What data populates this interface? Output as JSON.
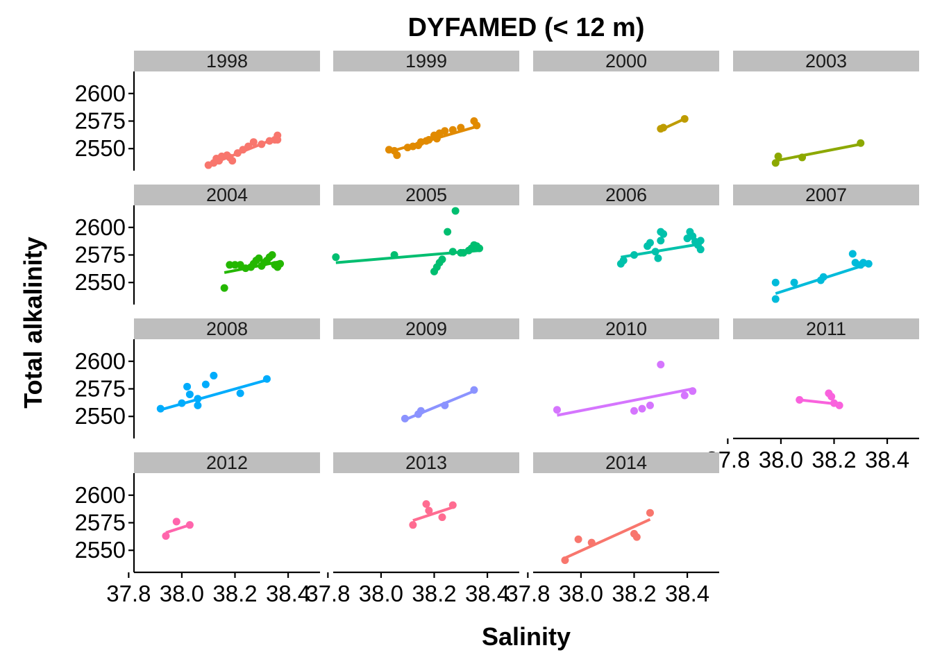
{
  "chart_data": {
    "type": "scatter",
    "title": "DYFAMED (< 12 m)",
    "xlabel": "Salinity",
    "ylabel": "Total alkalinity",
    "xlim": [
      37.82,
      38.52
    ],
    "ylim": [
      2530,
      2620
    ],
    "x_tick_labels": [
      "37.8",
      "38.0",
      "38.2",
      "38.4"
    ],
    "x_ticks": [
      37.8,
      38.0,
      38.2,
      38.4
    ],
    "y_tick_labels": [
      "2550",
      "2575",
      "2600"
    ],
    "y_ticks": [
      2550,
      2575,
      2600
    ],
    "fit_line": true,
    "panels": [
      {
        "name": "1998",
        "color": "#F8766D",
        "points": [
          [
            38.1,
            2535
          ],
          [
            38.12,
            2537
          ],
          [
            38.13,
            2541
          ],
          [
            38.14,
            2539
          ],
          [
            38.15,
            2543
          ],
          [
            38.17,
            2544
          ],
          [
            38.18,
            2542
          ],
          [
            38.19,
            2539
          ],
          [
            38.21,
            2546
          ],
          [
            38.23,
            2549
          ],
          [
            38.25,
            2552
          ],
          [
            38.27,
            2556
          ],
          [
            38.3,
            2554
          ],
          [
            38.33,
            2557
          ],
          [
            38.35,
            2558
          ],
          [
            38.36,
            2562
          ],
          [
            38.36,
            2558
          ]
        ],
        "fit": [
          [
            38.1,
            2535
          ],
          [
            38.36,
            2560
          ]
        ]
      },
      {
        "name": "1999",
        "color": "#E18A00",
        "points": [
          [
            38.03,
            2549
          ],
          [
            38.05,
            2548
          ],
          [
            38.06,
            2544
          ],
          [
            38.1,
            2551
          ],
          [
            38.12,
            2552
          ],
          [
            38.14,
            2553
          ],
          [
            38.15,
            2556
          ],
          [
            38.17,
            2557
          ],
          [
            38.18,
            2558
          ],
          [
            38.2,
            2562
          ],
          [
            38.22,
            2564
          ],
          [
            38.24,
            2566
          ],
          [
            38.21,
            2559
          ],
          [
            38.27,
            2567
          ],
          [
            38.3,
            2569
          ],
          [
            38.35,
            2575
          ],
          [
            38.36,
            2571
          ]
        ],
        "fit": [
          [
            38.03,
            2547
          ],
          [
            38.36,
            2570
          ]
        ]
      },
      {
        "name": "2000",
        "color": "#BE9C00",
        "points": [
          [
            38.3,
            2568
          ],
          [
            38.31,
            2569
          ],
          [
            38.39,
            2577
          ]
        ],
        "fit": [
          [
            38.3,
            2567
          ],
          [
            38.39,
            2577
          ]
        ]
      },
      {
        "name": "2003",
        "color": "#8CA800",
        "points": [
          [
            37.98,
            2537
          ],
          [
            37.99,
            2543
          ],
          [
            38.08,
            2542
          ],
          [
            38.3,
            2555
          ]
        ],
        "fit": [
          [
            37.98,
            2539
          ],
          [
            38.3,
            2554
          ]
        ]
      },
      {
        "name": "2004",
        "color": "#24B700",
        "points": [
          [
            38.16,
            2545
          ],
          [
            38.18,
            2566
          ],
          [
            38.2,
            2566
          ],
          [
            38.22,
            2566
          ],
          [
            38.24,
            2563
          ],
          [
            38.26,
            2564
          ],
          [
            38.27,
            2567
          ],
          [
            38.28,
            2570
          ],
          [
            38.29,
            2572
          ],
          [
            38.3,
            2565
          ],
          [
            38.31,
            2568
          ],
          [
            38.32,
            2570
          ],
          [
            38.33,
            2573
          ],
          [
            38.34,
            2575
          ],
          [
            38.35,
            2566
          ],
          [
            38.36,
            2564
          ],
          [
            38.37,
            2567
          ]
        ],
        "fit": [
          [
            38.16,
            2559
          ],
          [
            38.37,
            2569
          ]
        ]
      },
      {
        "name": "2005",
        "color": "#00BE70",
        "points": [
          [
            37.83,
            2573
          ],
          [
            38.05,
            2575
          ],
          [
            38.2,
            2560
          ],
          [
            38.21,
            2564
          ],
          [
            38.22,
            2568
          ],
          [
            38.23,
            2571
          ],
          [
            38.25,
            2596
          ],
          [
            38.27,
            2578
          ],
          [
            38.3,
            2577
          ],
          [
            38.31,
            2577
          ],
          [
            38.33,
            2579
          ],
          [
            38.34,
            2581
          ],
          [
            38.35,
            2584
          ],
          [
            38.36,
            2583
          ],
          [
            38.37,
            2581
          ],
          [
            38.28,
            2615
          ]
        ],
        "fit": [
          [
            37.83,
            2568
          ],
          [
            38.37,
            2579
          ]
        ]
      },
      {
        "name": "2006",
        "color": "#00C1AB",
        "points": [
          [
            38.15,
            2567
          ],
          [
            38.16,
            2570
          ],
          [
            38.2,
            2575
          ],
          [
            38.25,
            2583
          ],
          [
            38.26,
            2586
          ],
          [
            38.28,
            2578
          ],
          [
            38.29,
            2572
          ],
          [
            38.3,
            2588
          ],
          [
            38.3,
            2596
          ],
          [
            38.31,
            2594
          ],
          [
            38.4,
            2590
          ],
          [
            38.41,
            2596
          ],
          [
            38.42,
            2592
          ],
          [
            38.43,
            2587
          ],
          [
            38.44,
            2584
          ],
          [
            38.45,
            2580
          ],
          [
            38.45,
            2588
          ]
        ],
        "fit": [
          [
            38.15,
            2573
          ],
          [
            38.45,
            2585
          ]
        ]
      },
      {
        "name": "2007",
        "color": "#00BBDA",
        "points": [
          [
            37.98,
            2535
          ],
          [
            37.98,
            2550
          ],
          [
            38.05,
            2550
          ],
          [
            38.15,
            2552
          ],
          [
            38.16,
            2555
          ],
          [
            38.27,
            2576
          ],
          [
            38.28,
            2568
          ],
          [
            38.3,
            2566
          ],
          [
            38.31,
            2568
          ],
          [
            38.33,
            2567
          ]
        ],
        "fit": [
          [
            37.98,
            2540
          ],
          [
            38.33,
            2567
          ]
        ]
      },
      {
        "name": "2008",
        "color": "#00ACFC",
        "points": [
          [
            37.92,
            2557
          ],
          [
            38.0,
            2562
          ],
          [
            38.02,
            2577
          ],
          [
            38.03,
            2570
          ],
          [
            38.06,
            2560
          ],
          [
            38.06,
            2566
          ],
          [
            38.09,
            2579
          ],
          [
            38.12,
            2587
          ],
          [
            38.22,
            2571
          ],
          [
            38.32,
            2584
          ]
        ],
        "fit": [
          [
            37.92,
            2556
          ],
          [
            38.32,
            2583
          ]
        ]
      },
      {
        "name": "2009",
        "color": "#8B93FF",
        "points": [
          [
            38.09,
            2548
          ],
          [
            38.14,
            2552
          ],
          [
            38.15,
            2555
          ],
          [
            38.24,
            2560
          ],
          [
            38.35,
            2574
          ]
        ],
        "fit": [
          [
            38.09,
            2547
          ],
          [
            38.35,
            2573
          ]
        ]
      },
      {
        "name": "2010",
        "color": "#D575FE",
        "points": [
          [
            37.91,
            2556
          ],
          [
            38.2,
            2555
          ],
          [
            38.23,
            2557
          ],
          [
            38.26,
            2560
          ],
          [
            38.3,
            2597
          ],
          [
            38.39,
            2569
          ],
          [
            38.42,
            2573
          ]
        ],
        "fit": [
          [
            37.91,
            2551
          ],
          [
            38.42,
            2575
          ]
        ]
      },
      {
        "name": "2011",
        "color": "#F962DD",
        "points": [
          [
            38.07,
            2565
          ],
          [
            38.18,
            2571
          ],
          [
            38.19,
            2568
          ],
          [
            38.2,
            2562
          ],
          [
            38.22,
            2560
          ]
        ],
        "fit": [
          [
            38.07,
            2565
          ],
          [
            38.22,
            2561
          ]
        ]
      },
      {
        "name": "2012",
        "color": "#FF65AC",
        "points": [
          [
            37.94,
            2563
          ],
          [
            37.98,
            2576
          ],
          [
            38.03,
            2573
          ]
        ],
        "fit": [
          [
            37.94,
            2566
          ],
          [
            38.03,
            2573
          ]
        ]
      },
      {
        "name": "2013",
        "color": "#FF6C91",
        "points": [
          [
            38.12,
            2573
          ],
          [
            38.17,
            2592
          ],
          [
            38.18,
            2586
          ],
          [
            38.23,
            2580
          ],
          [
            38.27,
            2591
          ]
        ],
        "fit": [
          [
            38.12,
            2577
          ],
          [
            38.27,
            2589
          ]
        ]
      },
      {
        "name": "2014",
        "color": "#F8766D",
        "points": [
          [
            37.94,
            2541
          ],
          [
            37.99,
            2560
          ],
          [
            38.04,
            2557
          ],
          [
            38.2,
            2565
          ],
          [
            38.21,
            2562
          ],
          [
            38.26,
            2584
          ]
        ],
        "fit": [
          [
            37.94,
            2543
          ],
          [
            38.26,
            2578
          ]
        ]
      }
    ]
  }
}
